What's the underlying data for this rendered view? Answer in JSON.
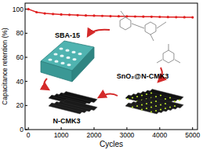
{
  "chart_data": {
    "type": "line",
    "x_label": "Cycles",
    "y_label": "Capacitance retention (%)",
    "x": [
      0,
      250,
      500,
      750,
      1000,
      1250,
      1500,
      1750,
      2000,
      2250,
      2500,
      2750,
      3000,
      3250,
      3500,
      3750,
      4000,
      4250,
      4500,
      4750,
      5000
    ],
    "series": [
      {
        "name": "SnO₂@N-CMK3",
        "color": "#e02020",
        "marker": "circle",
        "line_style": "solid",
        "values": [
          100,
          97.5,
          96.5,
          96,
          95.6,
          95.3,
          95,
          94.8,
          94.6,
          94.4,
          94.2,
          94.1,
          94,
          93.9,
          93.8,
          93.7,
          93.6,
          93.5,
          93.4,
          93.3,
          93.2
        ]
      }
    ],
    "xlim": [
      -100,
      5150
    ],
    "ylim": [
      0,
      105
    ],
    "xticks": [
      0,
      1000,
      2000,
      3000,
      4000,
      5000
    ],
    "yticks": [
      0,
      20,
      40,
      60,
      80,
      100
    ],
    "grid": false,
    "annotations": [
      "SBA-15",
      "N-CMK3",
      "SnO₂@N-CMK3"
    ]
  }
}
